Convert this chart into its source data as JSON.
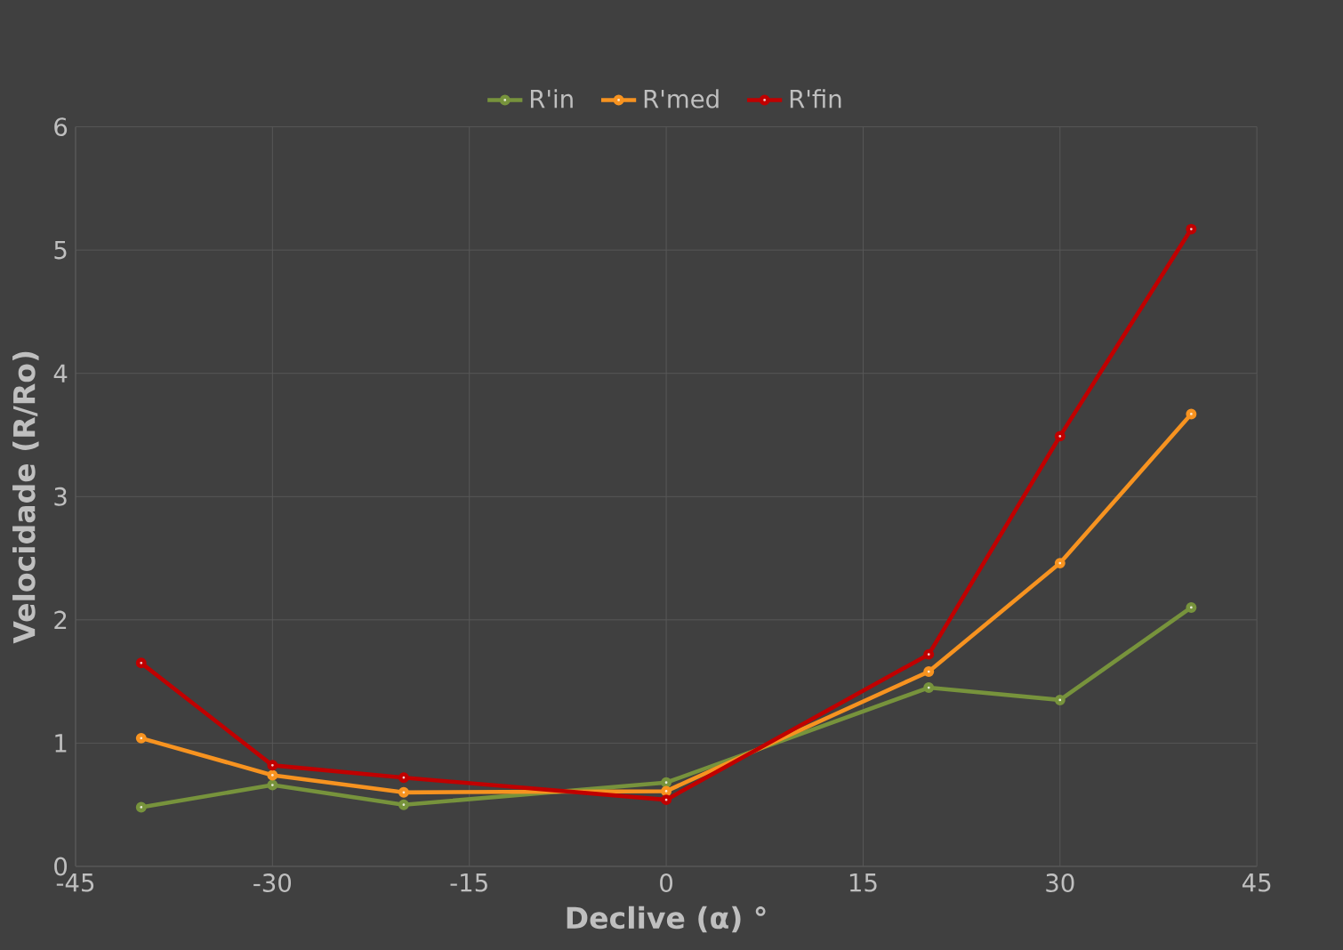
{
  "chart_data": {
    "type": "line",
    "xlabel": "Declive (α)  °",
    "ylabel": "Velocidade (R/Ro)",
    "x": [
      -40,
      -30,
      -20,
      0,
      20,
      30,
      40
    ],
    "xlim": [
      -45,
      45
    ],
    "xticks": [
      -45,
      -30,
      -15,
      0,
      15,
      30,
      45
    ],
    "ylim": [
      0,
      6
    ],
    "yticks": [
      0,
      1,
      2,
      3,
      4,
      5,
      6
    ],
    "grid": true,
    "legend": "top",
    "marker": "circle",
    "series": [
      {
        "name": "R'in",
        "color": "#77933c",
        "values": [
          0.48,
          0.66,
          0.5,
          0.68,
          1.45,
          1.35,
          2.1
        ]
      },
      {
        "name": "R'med",
        "color": "#f79320",
        "values": [
          1.04,
          0.74,
          0.6,
          0.61,
          1.58,
          2.46,
          3.67
        ]
      },
      {
        "name": "R'fin",
        "color": "#c00000",
        "values": [
          1.65,
          0.82,
          0.72,
          0.54,
          1.72,
          3.49,
          5.17
        ]
      }
    ]
  }
}
